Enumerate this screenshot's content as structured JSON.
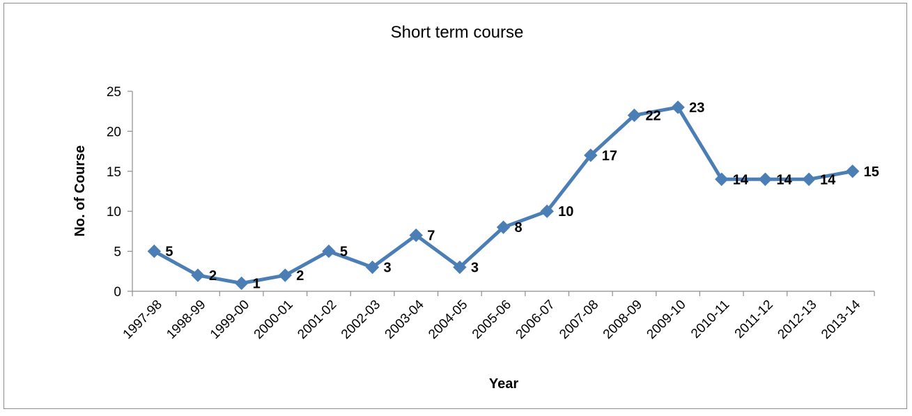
{
  "chart_data": {
    "type": "line",
    "title": "Short term course",
    "xlabel": "Year",
    "ylabel": "No. of Course",
    "categories": [
      "1997-98",
      "1998-99",
      "1999-00",
      "2000-01",
      "2001-02",
      "2002-03",
      "2003-04",
      "2004-05",
      "2005-06",
      "2006-07",
      "2007-08",
      "2008-09",
      "2009-10",
      "2010-11",
      "2011-12",
      "2012-13",
      "2013-14"
    ],
    "series": [
      {
        "values": [
          5,
          2,
          1,
          2,
          5,
          3,
          7,
          3,
          8,
          10,
          17,
          22,
          23,
          14,
          14,
          14,
          15
        ]
      }
    ],
    "yticks": [
      0,
      5,
      10,
      15,
      20,
      25
    ],
    "ylim": [
      0,
      25
    ],
    "grid": false,
    "legend": "none",
    "series_color": "#4a7eb5",
    "data_labels": true
  }
}
